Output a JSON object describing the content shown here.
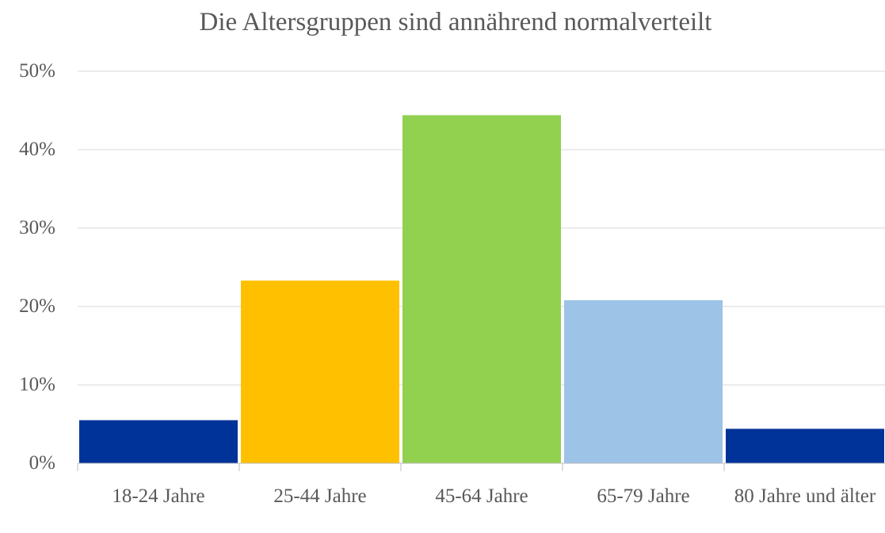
{
  "chart_data": {
    "type": "bar",
    "title": "Die Altersgruppen sind annährend normalverteilt",
    "categories": [
      "18-24 Jahre",
      "25-44 Jahre",
      "45-64 Jahre",
      "65-79 Jahre",
      "80 Jahre und älter"
    ],
    "values": [
      5.5,
      23.3,
      44.4,
      20.8,
      4.4
    ],
    "colors": [
      "#003399",
      "#ffc000",
      "#92d050",
      "#9dc3e6",
      "#003399"
    ],
    "ylim": [
      0,
      50
    ],
    "yticks": [
      {
        "value": 0,
        "label": "0%"
      },
      {
        "value": 10,
        "label": "10%"
      },
      {
        "value": 20,
        "label": "20%"
      },
      {
        "value": 30,
        "label": "30%"
      },
      {
        "value": 40,
        "label": "40%"
      },
      {
        "value": 50,
        "label": "50%"
      }
    ],
    "grid": true
  }
}
